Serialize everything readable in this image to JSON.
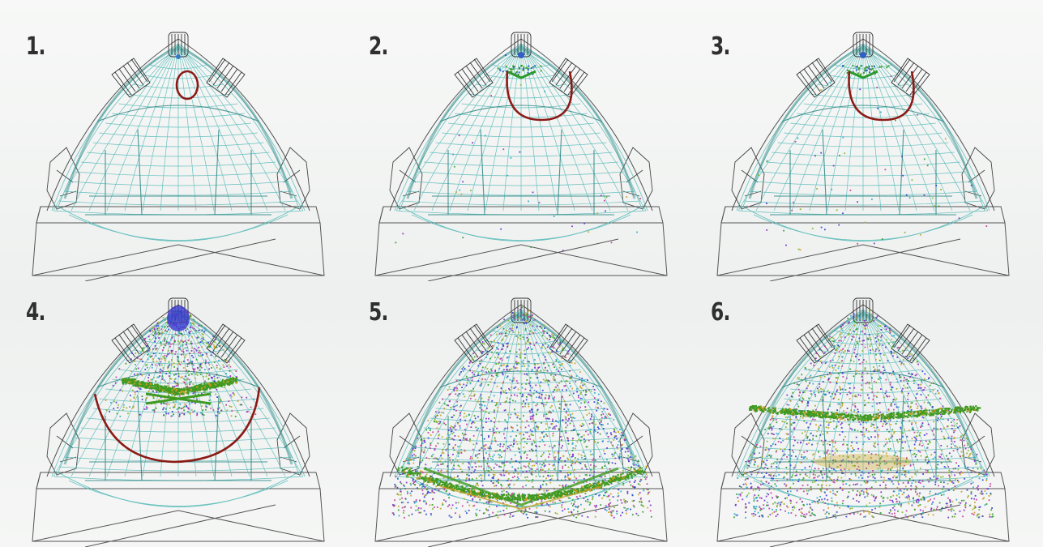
{
  "panels": [
    {
      "label": "1.",
      "stage": "initial",
      "particle_density": 0.0,
      "front": "small-ring",
      "seam": "none"
    },
    {
      "label": "2.",
      "stage": "expanding",
      "particle_density": 0.02,
      "front": "medium-ring",
      "seam": "none"
    },
    {
      "label": "3.",
      "stage": "expanding",
      "particle_density": 0.03,
      "front": "medium-ring",
      "seam": "none"
    },
    {
      "label": "4.",
      "stage": "spreading",
      "particle_density": 0.35,
      "front": "large-arc",
      "seam": "upper"
    },
    {
      "label": "5.",
      "stage": "filled",
      "particle_density": 1.0,
      "front": "none",
      "seam": "bottom"
    },
    {
      "label": "6.",
      "stage": "filled",
      "particle_density": 0.9,
      "front": "none",
      "seam": "middle"
    }
  ],
  "colors": {
    "mesh": "#4fb8b6",
    "mesh_dark": "#1f7f7c",
    "frame": "#555555",
    "front": "#8b1a16",
    "particles": [
      "#2e3bd1",
      "#7a2bc8",
      "#c23a9a",
      "#2a9a2a",
      "#7fb52a",
      "#c8a020",
      "#2aa7c8"
    ]
  }
}
